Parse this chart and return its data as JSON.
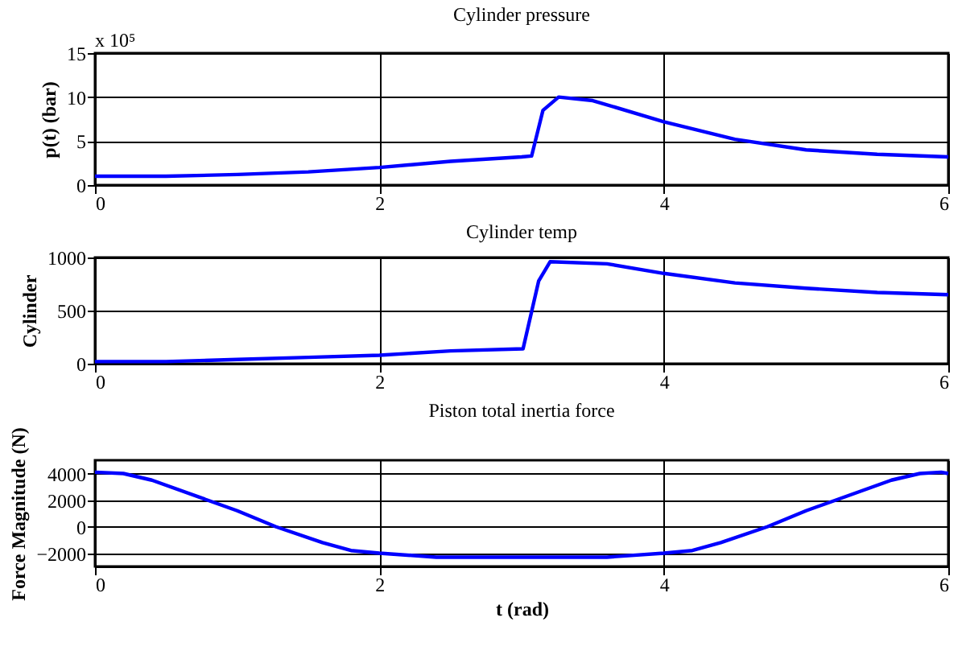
{
  "chart_data": [
    {
      "type": "line",
      "title": "Cylinder pressure",
      "ylabel": "p(t) (bar)",
      "annotations": [
        "x 10⁵"
      ],
      "xlim": [
        0,
        6
      ],
      "xticks": [
        0,
        2,
        4,
        6
      ],
      "ylim": [
        0,
        15
      ],
      "yticks": [
        0,
        5,
        10,
        15
      ],
      "grid": true,
      "series": [
        {
          "color": "#0000ff",
          "x": [
            0,
            0.5,
            1,
            1.5,
            2,
            2.5,
            3,
            3.07,
            3.15,
            3.26,
            3.5,
            4,
            4.5,
            5,
            5.5,
            6
          ],
          "values": [
            1,
            1,
            1.2,
            1.5,
            2,
            2.7,
            3.2,
            3.3,
            8.5,
            10,
            9.6,
            7.2,
            5.2,
            4,
            3.5,
            3.2
          ]
        }
      ]
    },
    {
      "type": "line",
      "title": "Cylinder temp",
      "ylabel": "Cylinder",
      "xlim": [
        0,
        6
      ],
      "xticks": [
        0,
        2,
        4,
        6
      ],
      "ylim": [
        0,
        1000
      ],
      "yticks": [
        0,
        500,
        1000
      ],
      "grid": true,
      "series": [
        {
          "color": "#0000ff",
          "x": [
            0,
            0.5,
            1,
            1.5,
            2,
            2.5,
            3.01,
            3.12,
            3.2,
            3.6,
            4,
            4.5,
            5,
            5.5,
            6
          ],
          "values": [
            20,
            20,
            40,
            60,
            80,
            120,
            140,
            780,
            960,
            940,
            850,
            760,
            710,
            670,
            650
          ]
        }
      ]
    },
    {
      "type": "line",
      "title": "Piston total inertia force",
      "xlabel": "t (rad)",
      "ylabel": "Force Magnitude (N)",
      "xlim": [
        0,
        6
      ],
      "xticks": [
        0,
        2,
        4,
        6
      ],
      "ylim": [
        -3000,
        5000
      ],
      "yticks": [
        -2000,
        0,
        2000,
        4000
      ],
      "grid": true,
      "series": [
        {
          "color": "#0000ff",
          "x": [
            0,
            0.2,
            0.4,
            0.79,
            1,
            1.27,
            1.6,
            1.8,
            2,
            2.4,
            3,
            3.6,
            4,
            4.2,
            4.4,
            4.73,
            5,
            5.21,
            5.6,
            5.8,
            5.95,
            6
          ],
          "values": [
            4100,
            4000,
            3500,
            2000,
            1200,
            0,
            -1200,
            -1800,
            -2000,
            -2300,
            -2300,
            -2300,
            -2000,
            -1800,
            -1200,
            0,
            1200,
            2000,
            3500,
            4000,
            4100,
            4000
          ]
        }
      ]
    }
  ]
}
